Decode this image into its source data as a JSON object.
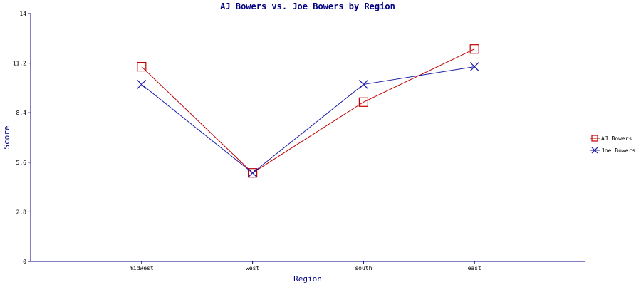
{
  "chart_data": {
    "type": "line",
    "title": "AJ Bowers vs. Joe Bowers by Region",
    "xlabel": "Region",
    "ylabel": "Score",
    "categories": [
      "midwest",
      "west",
      "south",
      "east"
    ],
    "ylim": [
      0,
      14
    ],
    "yticks": [
      "0",
      "2.8",
      "5.6",
      "8.4",
      "11.2",
      "14"
    ],
    "ytick_values": [
      0,
      2.8,
      5.6,
      8.4,
      11.2,
      14
    ],
    "grid": false,
    "legend_position": "right",
    "series": [
      {
        "name": "AJ Bowers",
        "values": [
          11,
          5,
          9,
          12
        ],
        "color": "#c00000",
        "marker": "square"
      },
      {
        "name": "Joe Bowers",
        "values": [
          10,
          5,
          10,
          11
        ],
        "color": "#1a1aa6",
        "marker": "x"
      }
    ],
    "axis_color": "#000080"
  }
}
